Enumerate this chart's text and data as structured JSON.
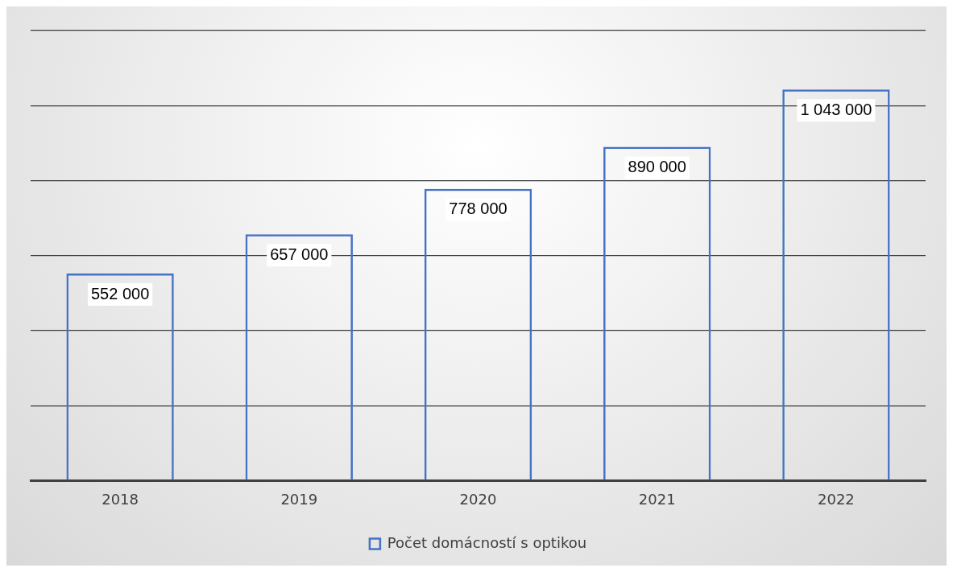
{
  "chart_data": {
    "type": "bar",
    "categories": [
      "2018",
      "2019",
      "2020",
      "2021",
      "2022"
    ],
    "series": [
      {
        "name": "Počet domácností s optikou",
        "color": "#4472c4",
        "values": [
          552000,
          657000,
          778000,
          890000,
          1043000
        ],
        "value_labels": [
          "552 000",
          "657 000",
          "778 000",
          "890 000",
          "1 043 000"
        ]
      }
    ],
    "grid": "y",
    "tick_labels": "x",
    "legend": "bottom"
  }
}
